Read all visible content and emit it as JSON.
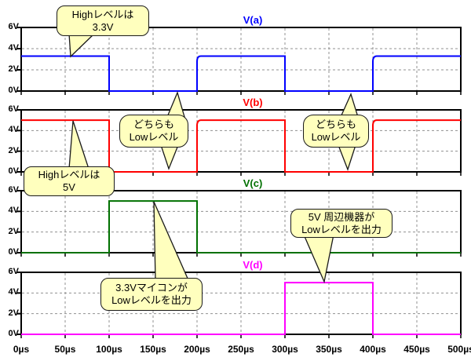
{
  "figure": {
    "background": "#ffffff",
    "grid_color": "#909090",
    "border_color": "#000000"
  },
  "time_axis": {
    "unit": "µs",
    "xlim": [
      0,
      500
    ],
    "tick_step_us": 50,
    "tick_values_us": [
      0,
      50,
      100,
      150,
      200,
      250,
      300,
      350,
      400,
      450,
      500
    ],
    "tick_labels": [
      "0µs",
      "50µs",
      "100µs",
      "150µs",
      "200µs",
      "250µs",
      "300µs",
      "350µs",
      "400µs",
      "450µs",
      "500µs"
    ]
  },
  "voltage_axis": {
    "ylim": [
      0,
      6
    ],
    "tick_values": [
      0,
      2,
      4,
      6
    ],
    "tick_labels": [
      "0V",
      "2V",
      "4V",
      "6V"
    ],
    "grid_values": [
      2,
      4
    ]
  },
  "chart_data": [
    {
      "type": "line",
      "title": "V(a)",
      "color": "#0000ff",
      "high_level_v": 3.3,
      "rise_curve": true,
      "x_us": [
        0,
        100,
        100,
        200,
        200,
        300,
        300,
        400,
        400,
        500
      ],
      "v": [
        3.3,
        3.3,
        0,
        0,
        3.3,
        3.3,
        0,
        0,
        3.3,
        3.3
      ]
    },
    {
      "type": "line",
      "title": "V(b)",
      "color": "#ff0000",
      "high_level_v": 5,
      "rise_curve": true,
      "x_us": [
        0,
        100,
        100,
        200,
        200,
        300,
        300,
        400,
        400,
        500
      ],
      "v": [
        5,
        5,
        0,
        0,
        5,
        5,
        0,
        0,
        5,
        5
      ]
    },
    {
      "type": "line",
      "title": "V(c)",
      "color": "#007000",
      "high_level_v": 5,
      "rise_curve": false,
      "x_us": [
        0,
        100,
        100,
        200,
        200,
        500
      ],
      "v": [
        0,
        0,
        5,
        5,
        0,
        0
      ]
    },
    {
      "type": "line",
      "title": "V(d)",
      "color": "#ff00ff",
      "high_level_v": 5,
      "rise_curve": false,
      "x_us": [
        0,
        300,
        300,
        400,
        400,
        500
      ],
      "v": [
        0,
        0,
        5,
        5,
        0,
        0
      ]
    }
  ],
  "callouts": [
    {
      "id": "high-level-3v3",
      "line1": "Highレベルは",
      "line2": "3.3V"
    },
    {
      "id": "both-low-left",
      "line1": "どちらも",
      "line2": "Lowレベル"
    },
    {
      "id": "both-low-right",
      "line1": "どちらも",
      "line2": "Lowレベル"
    },
    {
      "id": "high-level-5v",
      "line1": "Highレベルは",
      "line2": "5V"
    },
    {
      "id": "mcu-low-output",
      "line1": "3.3Vマイコンが",
      "line2": "Lowレベルを出力"
    },
    {
      "id": "periph-low-output",
      "line1": "5V 周辺機器が",
      "line2": "Lowレベルを出力"
    }
  ]
}
